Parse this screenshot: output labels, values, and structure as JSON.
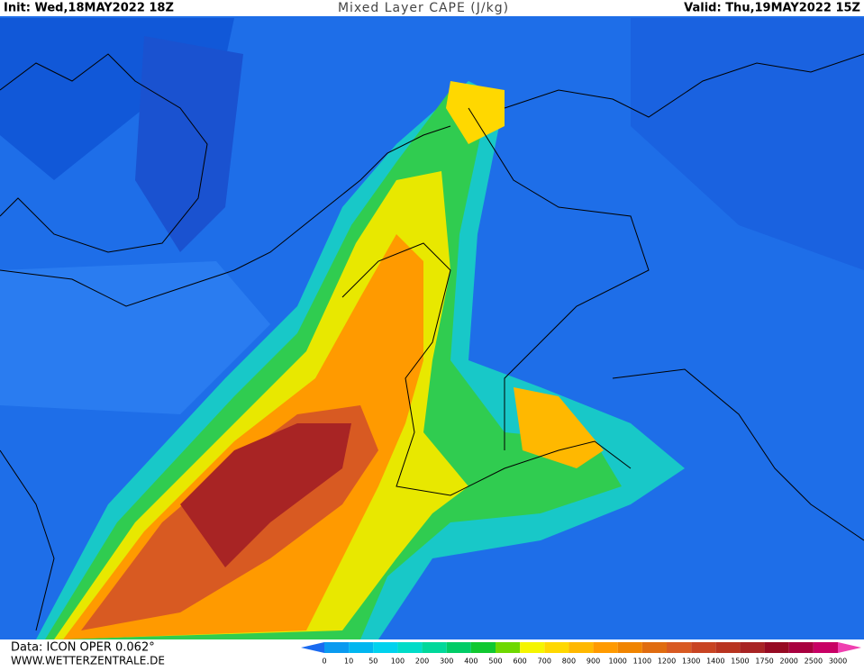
{
  "header": {
    "init": "Init: Wed,18MAY2022 18Z",
    "title": "Mixed Layer CAPE (J/kg)",
    "valid": "Valid: Thu,19MAY2022 15Z"
  },
  "footer": {
    "data": "Data: ICON OPER 0.062°",
    "site": "WWW.WETTERZENTRALE.DE"
  },
  "legend": {
    "labels": [
      0,
      10,
      50,
      100,
      200,
      300,
      400,
      500,
      600,
      700,
      800,
      900,
      1000,
      1100,
      1200,
      1300,
      1400,
      1500,
      1750,
      2000,
      2500,
      3000
    ],
    "colors": [
      "#0a9af0",
      "#00b6f0",
      "#00d2ee",
      "#00dcc8",
      "#00d89a",
      "#00cc66",
      "#10c830",
      "#6ed800",
      "#f5f500",
      "#ffd800",
      "#ffb800",
      "#ff9a00",
      "#f08400",
      "#e06c10",
      "#d85a22",
      "#c84422",
      "#b83420",
      "#a82424",
      "#960a22",
      "#a8003e",
      "#c80064"
    ],
    "under_color": "#1a6af0",
    "over_color": "#f040b0"
  }
}
